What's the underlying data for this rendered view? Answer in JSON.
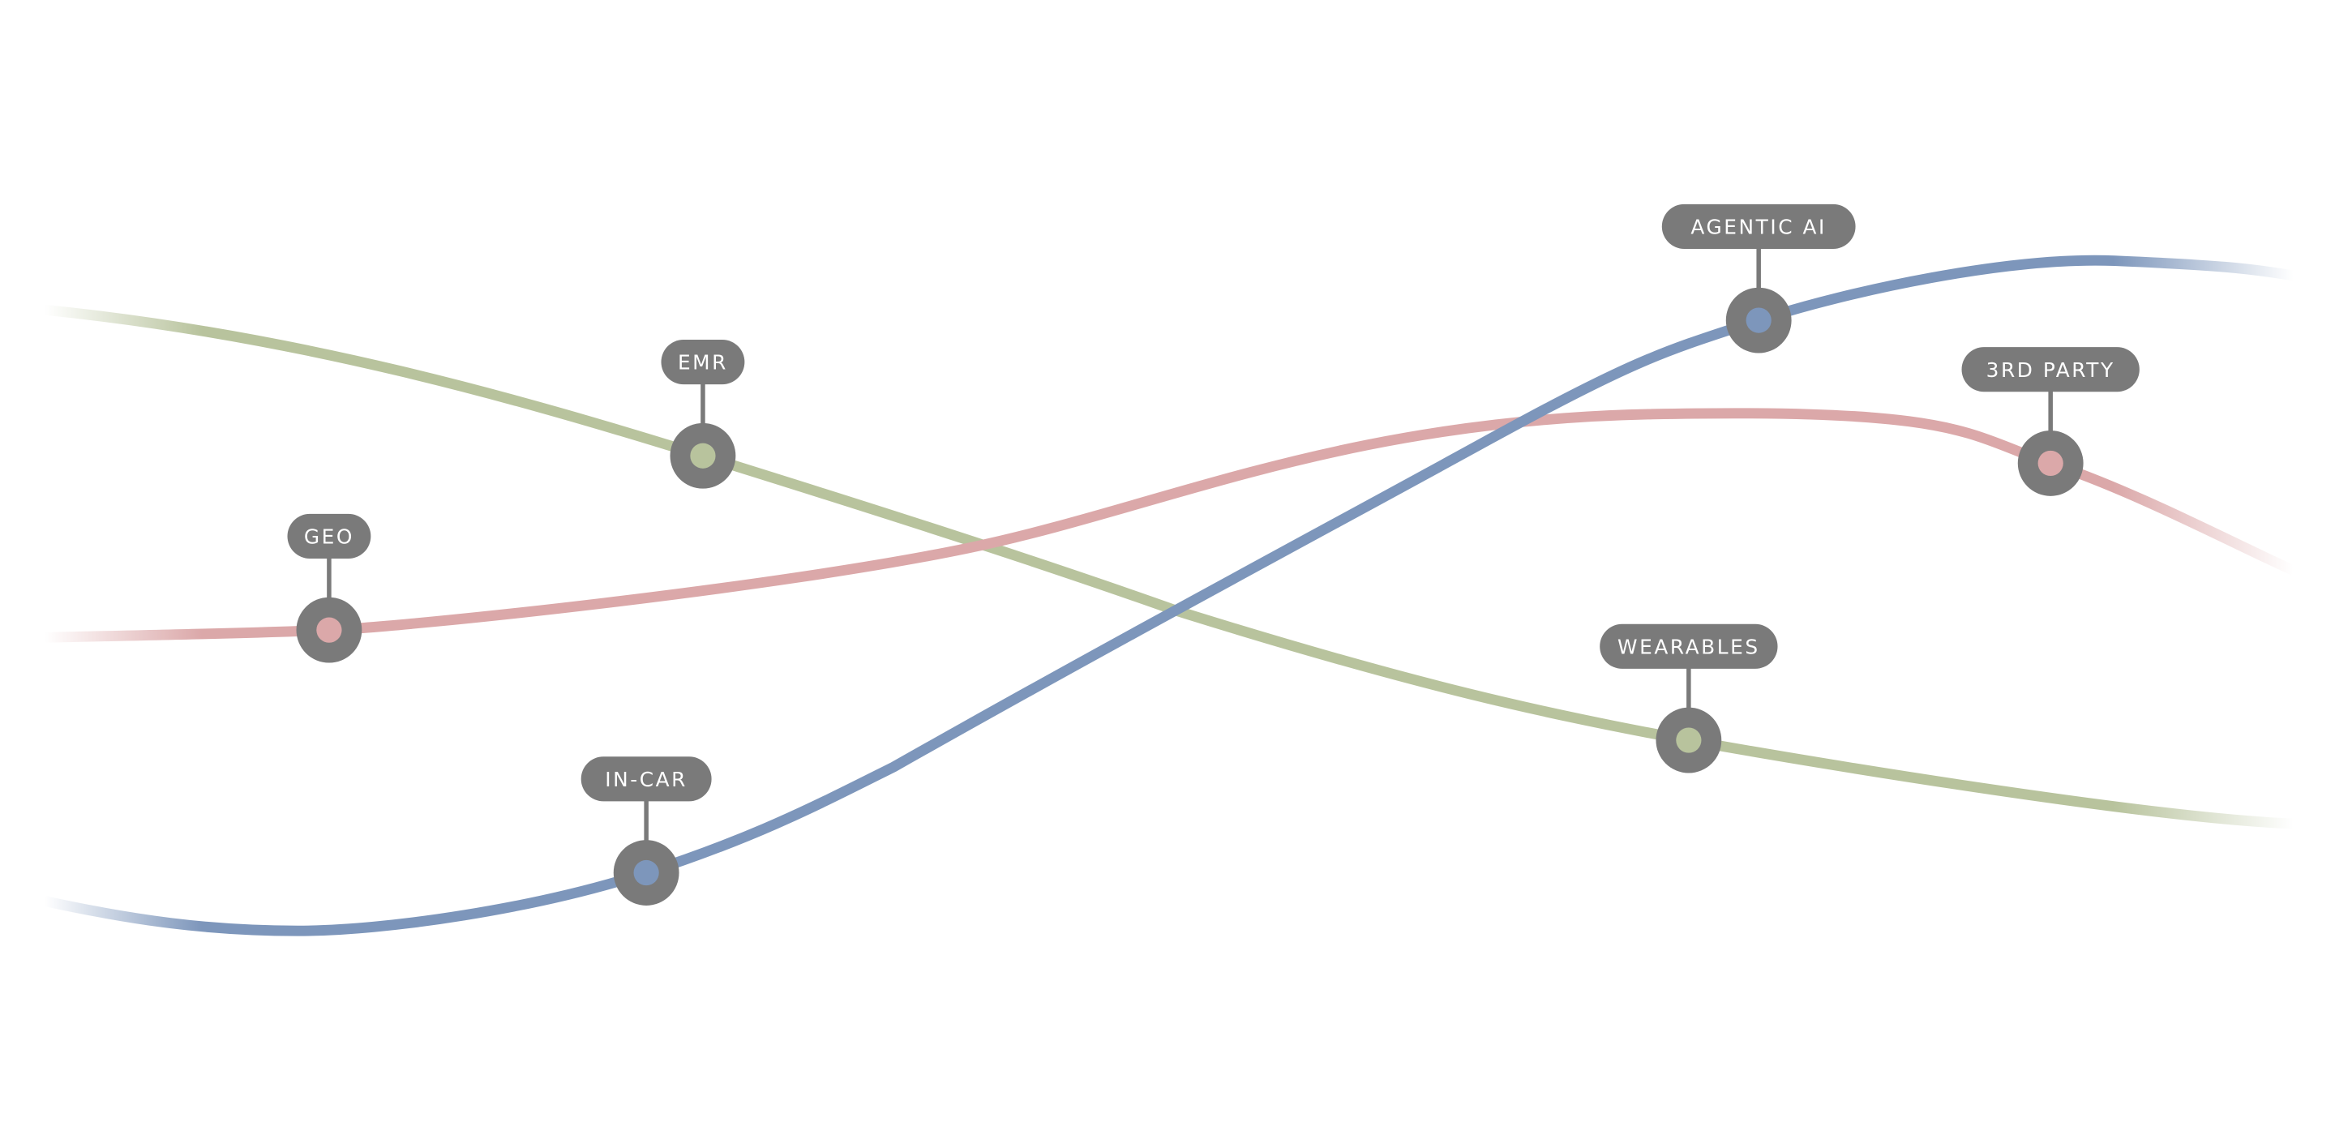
{
  "colors": {
    "green": "#b8c39d",
    "red": "#dba8a9",
    "blue": "#7d96bb",
    "marker": "#7a7a7a",
    "label_text": "#ffffff",
    "background": "#ffffff"
  },
  "lines": [
    {
      "id": "green",
      "color_key": "green"
    },
    {
      "id": "red",
      "color_key": "red"
    },
    {
      "id": "blue",
      "color_key": "blue"
    }
  ],
  "markers": [
    {
      "label": "GEO",
      "line": "red",
      "icon": "ring-marker-icon"
    },
    {
      "label": "EMR",
      "line": "green",
      "icon": "ring-marker-icon"
    },
    {
      "label": "IN-CAR",
      "line": "blue",
      "icon": "ring-marker-icon"
    },
    {
      "label": "AGENTIC AI",
      "line": "blue",
      "icon": "ring-marker-icon"
    },
    {
      "label": "3RD PARTY",
      "line": "red",
      "icon": "ring-marker-icon"
    },
    {
      "label": "WEARABLES",
      "line": "green",
      "icon": "ring-marker-icon"
    }
  ]
}
